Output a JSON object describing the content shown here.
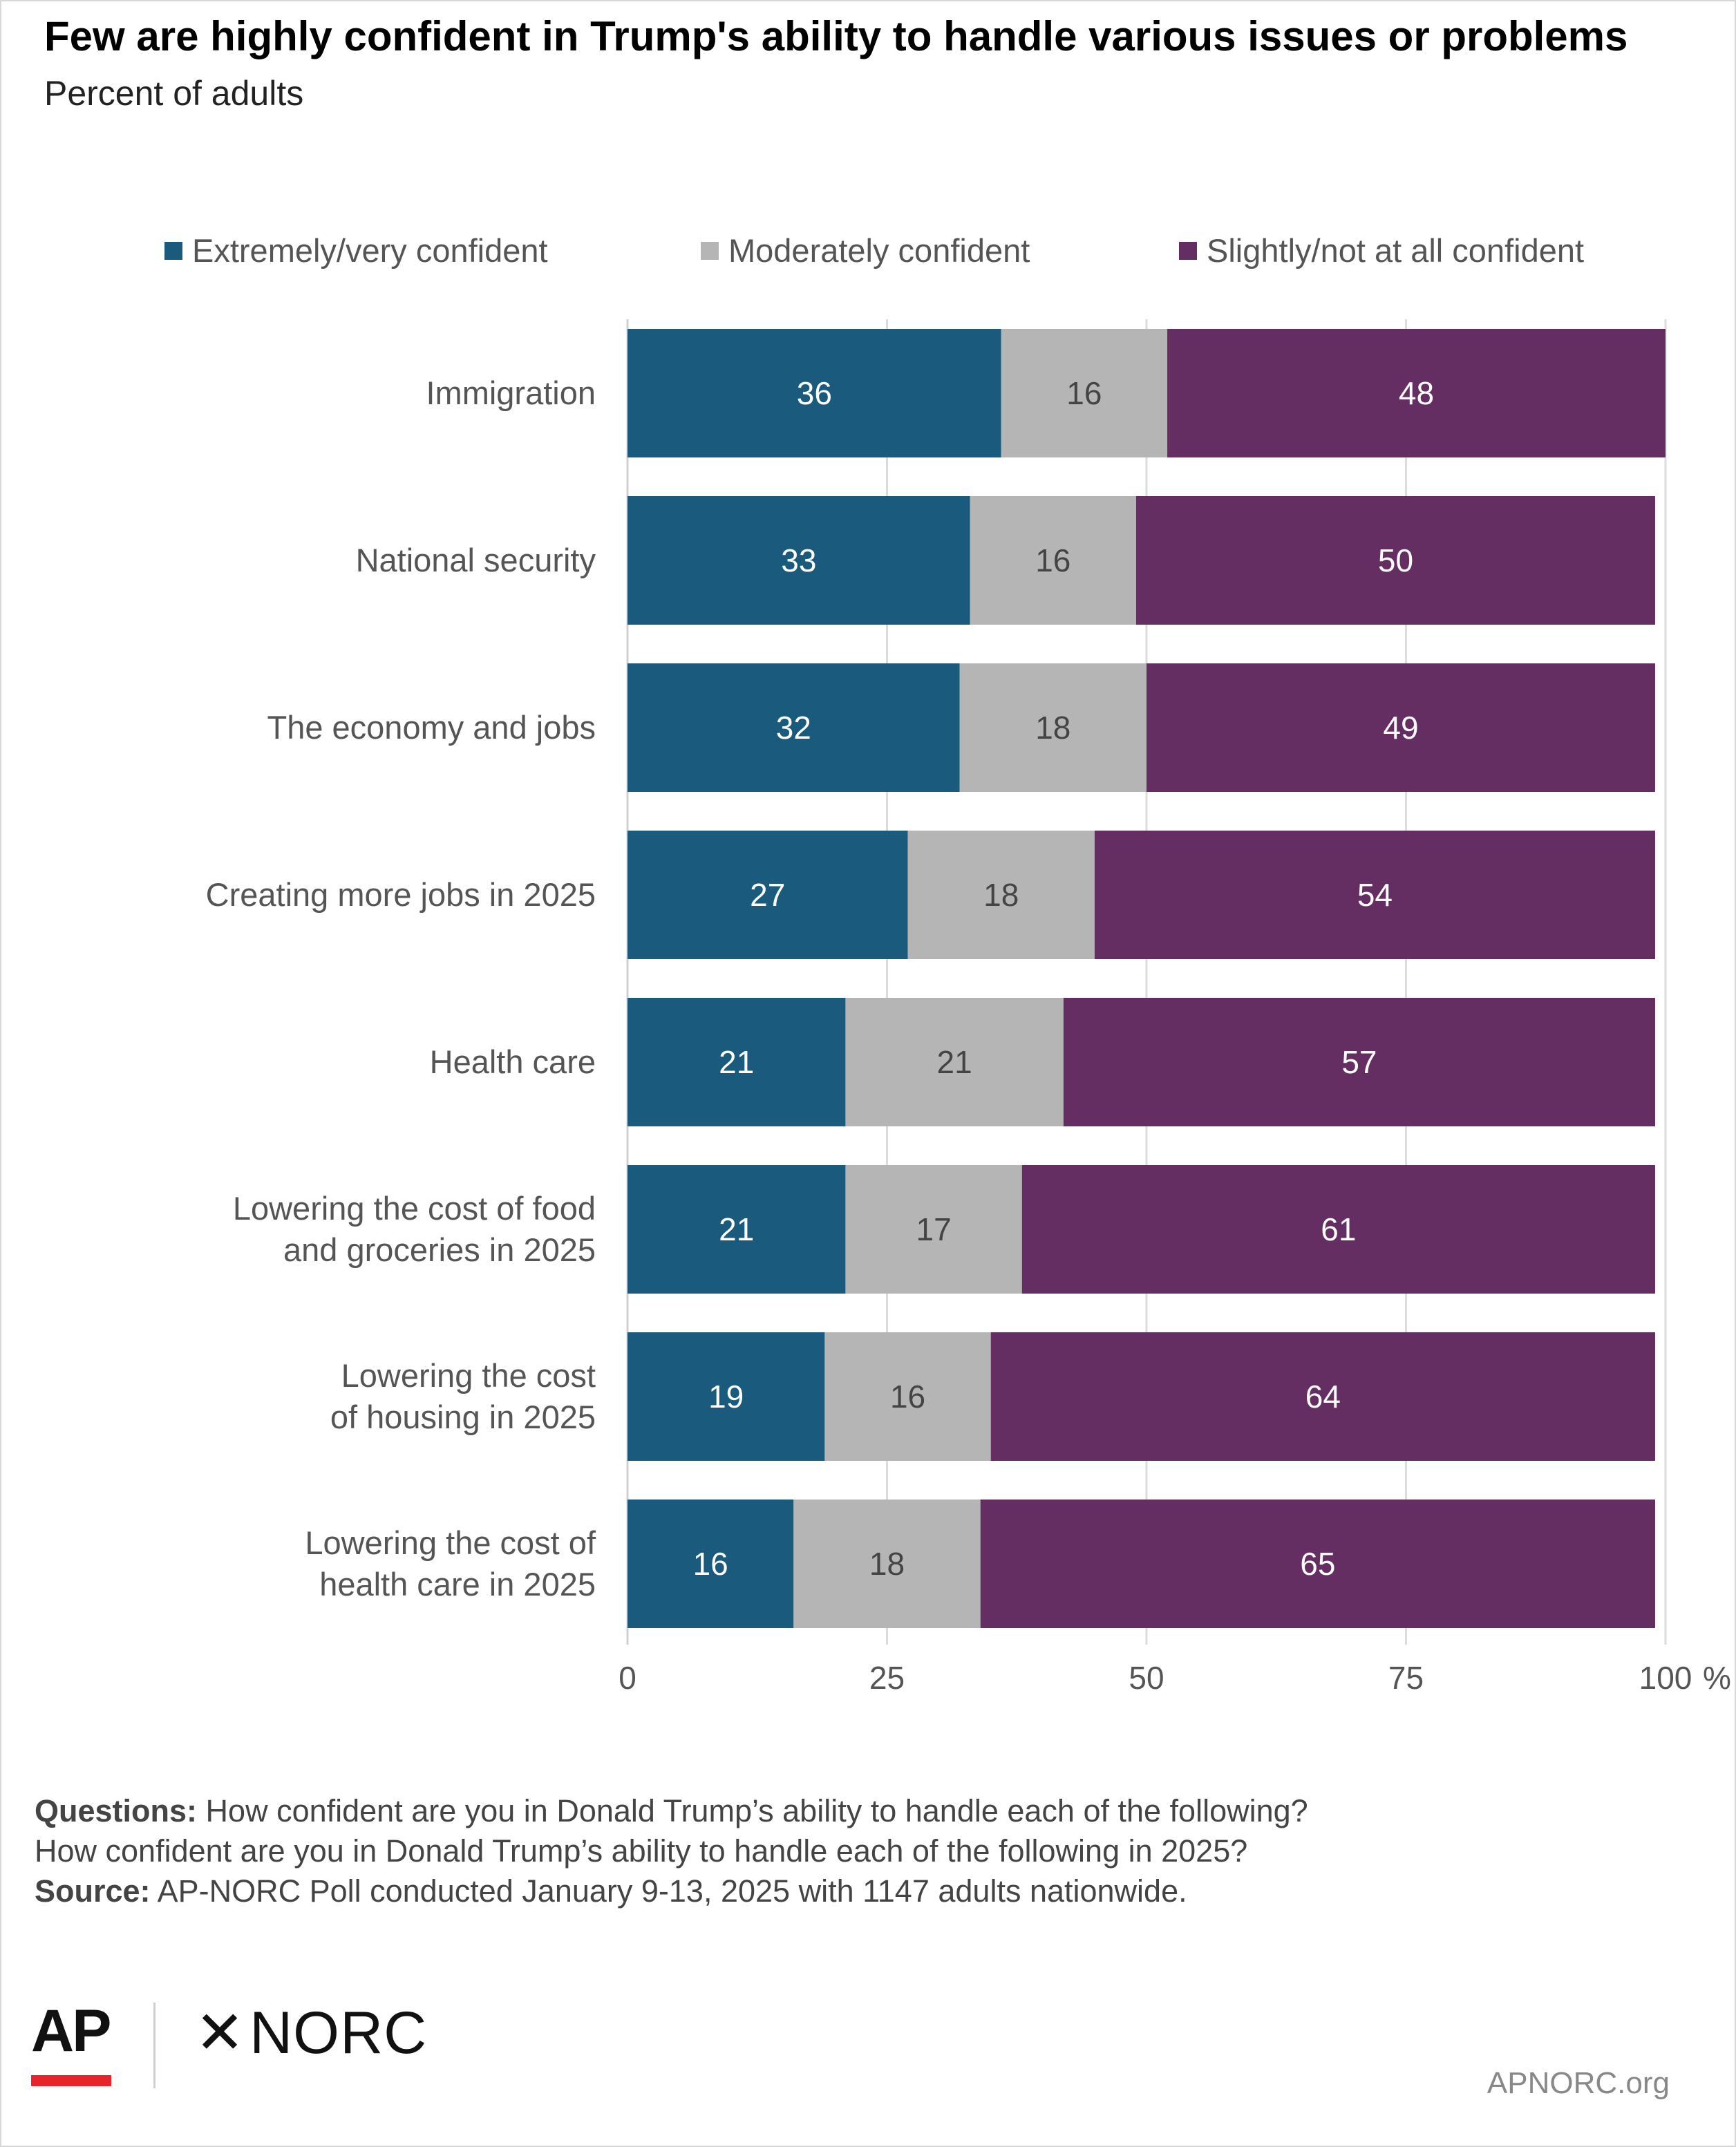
{
  "header": {
    "title": "Few are highly confident in Trump's ability to handle various issues or problems",
    "subtitle": "Percent of adults"
  },
  "chart_data": {
    "type": "bar",
    "orientation": "horizontal",
    "stacked": true,
    "categories": [
      "Immigration",
      "National security",
      "The economy and jobs",
      "Creating more jobs  in 2025",
      "Health care",
      "Lowering the cost of food and groceries in 2025",
      "Lowering the cost of housing in 2025",
      "Lowering the cost of health care in 2025"
    ],
    "series": [
      {
        "name": "Extremely/very confident",
        "color": "#1a5a7c",
        "values": [
          36,
          33,
          32,
          27,
          21,
          21,
          19,
          16
        ]
      },
      {
        "name": "Moderately confident",
        "color": "#b5b5b5",
        "values": [
          16,
          16,
          18,
          18,
          21,
          17,
          16,
          18
        ]
      },
      {
        "name": "Slightly/not at all confident",
        "color": "#642e62",
        "values": [
          48,
          50,
          49,
          54,
          57,
          61,
          64,
          65
        ]
      }
    ],
    "xlim": [
      0,
      100
    ],
    "xticks": [
      "0",
      "25",
      "50",
      "75",
      "100"
    ],
    "x_unit": "%",
    "grid": true,
    "legend_position": "top"
  },
  "footer": {
    "questions_label": "Questions:",
    "questions_line1": "How confident are you in Donald Trump’s ability to handle each of the following?",
    "questions_line2": "How confident are you in Donald Trump’s ability to handle each of the following in 2025?",
    "source_label": "Source:",
    "source_text": "AP-NORC Poll conducted January 9-13, 2025 with 1147 adults nationwide."
  },
  "branding": {
    "ap": "AP",
    "norc": "NORC",
    "norc_mark": "✕",
    "site": "APNORC.org"
  }
}
